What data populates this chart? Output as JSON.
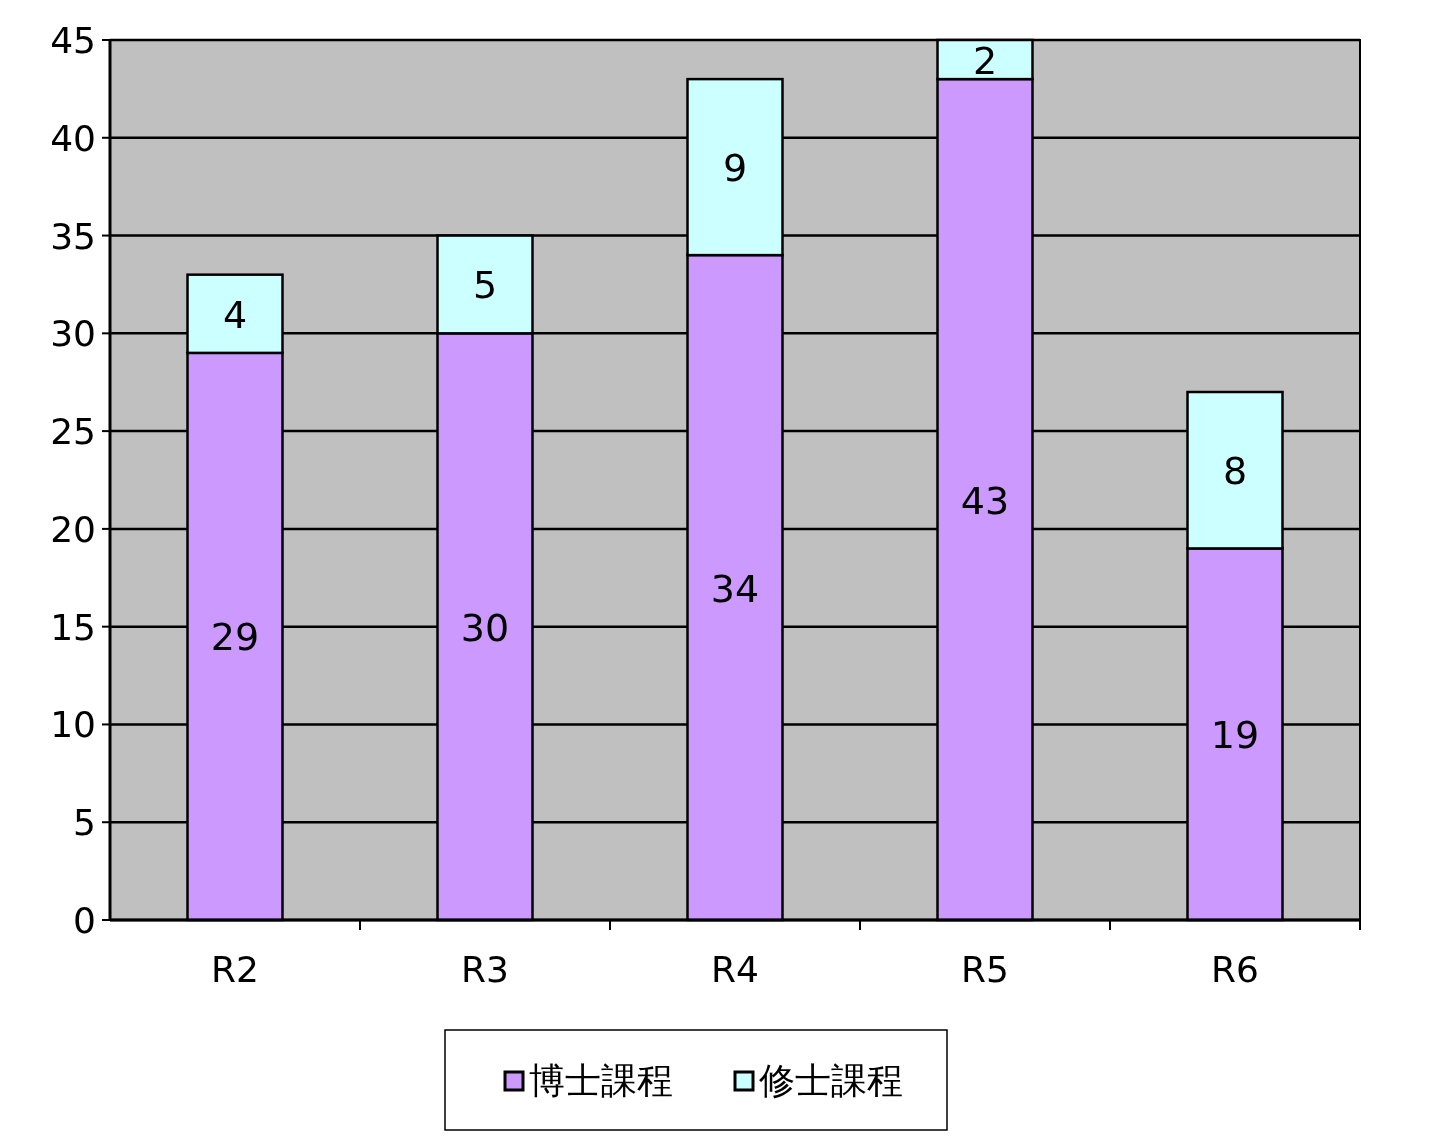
{
  "chart_data": {
    "type": "bar",
    "stacked": true,
    "categories": [
      "R2",
      "R3",
      "R4",
      "R5",
      "R6"
    ],
    "series": [
      {
        "name": "博士課程",
        "color": "#cc99ff",
        "values": [
          29,
          30,
          34,
          43,
          19
        ]
      },
      {
        "name": "修士課程",
        "color": "#ccffff",
        "values": [
          4,
          5,
          9,
          2,
          8
        ]
      }
    ],
    "ylim": [
      0,
      45
    ],
    "yticks": [
      0,
      5,
      10,
      15,
      20,
      25,
      30,
      35,
      40,
      45
    ],
    "grid": "y",
    "legend": "bottom",
    "data_labels": true
  }
}
